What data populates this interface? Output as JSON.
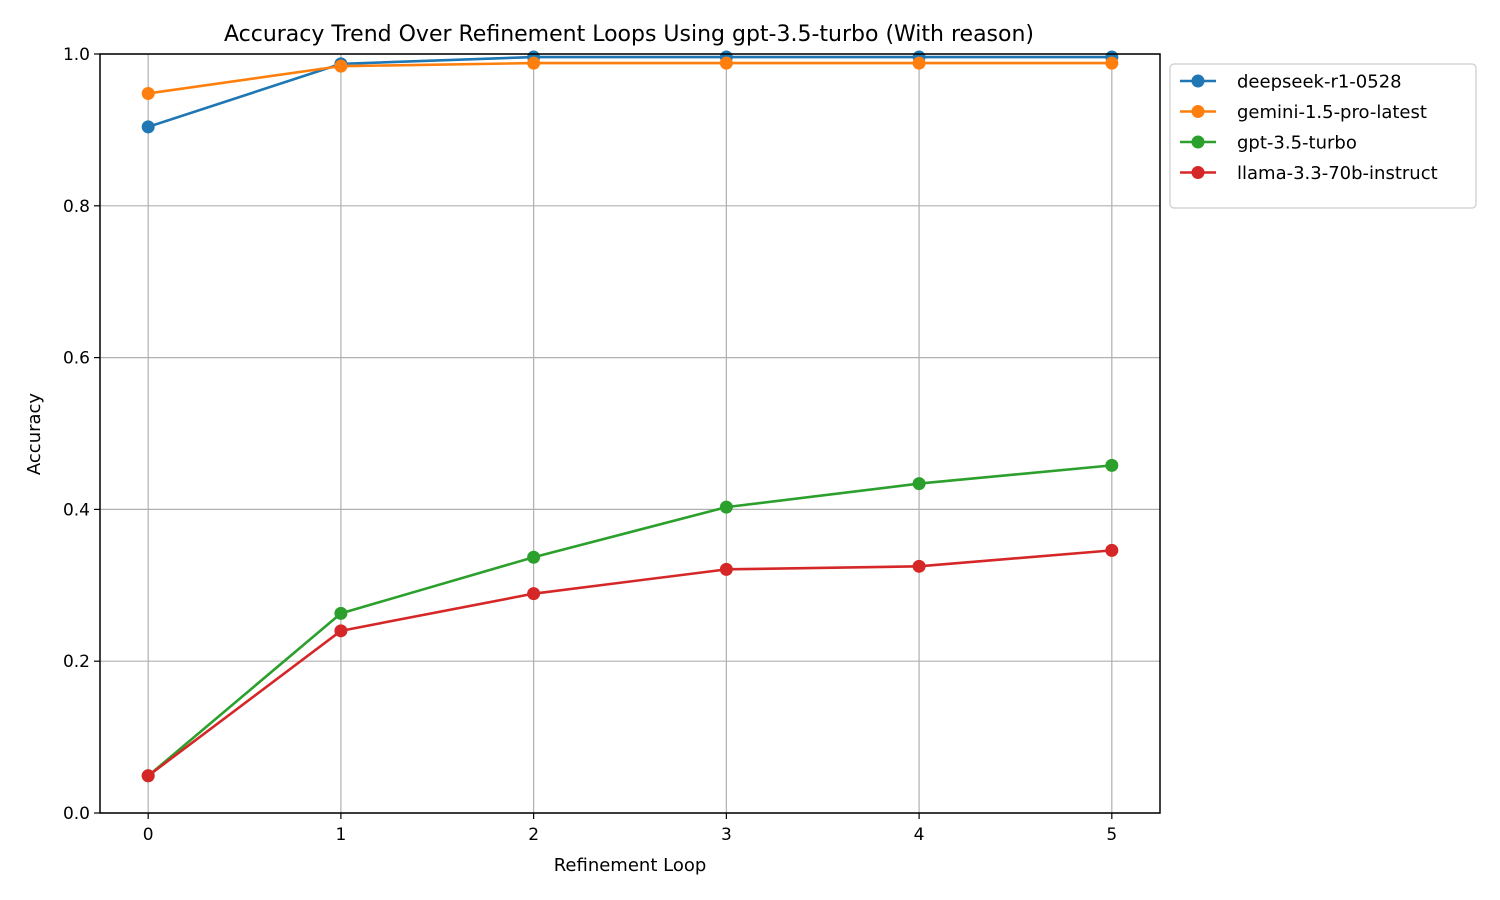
{
  "chart_data": {
    "type": "line",
    "title": "Accuracy Trend Over Refinement Loops Using gpt-3.5-turbo (With reason)",
    "xlabel": "Refinement Loop",
    "ylabel": "Accuracy",
    "x": [
      0,
      1,
      2,
      3,
      4,
      5
    ],
    "xlim": [
      -0.25,
      5.25
    ],
    "ylim": [
      0,
      1
    ],
    "xticks": [
      0,
      1,
      2,
      3,
      4,
      5
    ],
    "yticks": [
      0.0,
      0.2,
      0.4,
      0.6,
      0.8,
      1.0
    ],
    "xtick_labels": [
      "0",
      "1",
      "2",
      "3",
      "4",
      "5"
    ],
    "ytick_labels": [
      "0.0",
      "0.2",
      "0.4",
      "0.6",
      "0.8",
      "1.0"
    ],
    "grid": true,
    "legend_position": "outside-top-right",
    "series": [
      {
        "name": "deepseek-r1-0528",
        "color": "#1f77b4",
        "values": [
          0.904,
          0.987,
          0.996,
          0.996,
          0.996,
          0.996
        ]
      },
      {
        "name": "gemini-1.5-pro-latest",
        "color": "#ff7f0e",
        "values": [
          0.948,
          0.984,
          0.988,
          0.988,
          0.988,
          0.988
        ]
      },
      {
        "name": "gpt-3.5-turbo",
        "color": "#2ca02c",
        "values": [
          0.049,
          0.263,
          0.337,
          0.403,
          0.434,
          0.458
        ]
      },
      {
        "name": "llama-3.3-70b-instruct",
        "color": "#d62728",
        "values": [
          0.049,
          0.24,
          0.289,
          0.321,
          0.325,
          0.346
        ]
      }
    ]
  }
}
